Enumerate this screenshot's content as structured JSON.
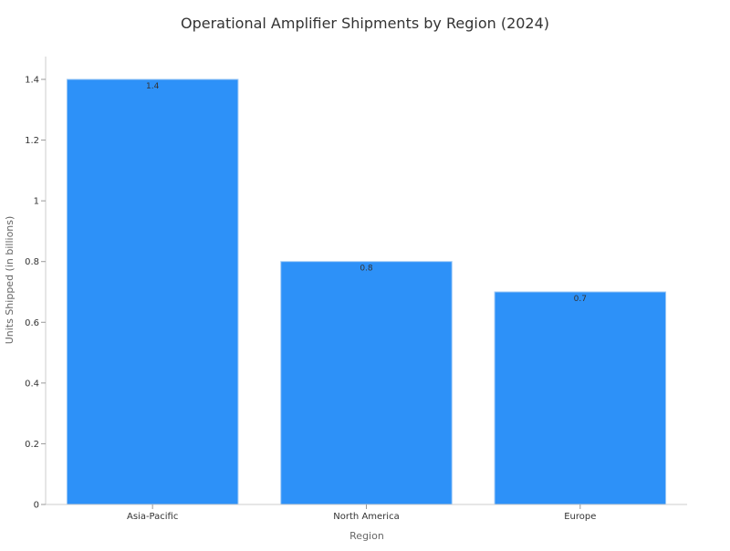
{
  "chart_data": {
    "type": "bar",
    "title": "Operational Amplifier Shipments by Region (2024)",
    "xlabel": "Region",
    "ylabel": "Units Shipped (in billions)",
    "categories": [
      "Asia-Pacific",
      "North America",
      "Europe"
    ],
    "values": [
      1.4,
      0.8,
      0.7
    ],
    "data_labels": [
      "1.4",
      "0.8",
      "0.7"
    ],
    "ylim": [
      0,
      1.4
    ],
    "yticks": [
      0,
      0.2,
      0.4,
      0.6,
      0.8,
      1,
      1.2,
      1.4
    ],
    "ytick_labels": [
      "0",
      "0.2",
      "0.4",
      "0.6",
      "0.8",
      "1",
      "1.2",
      "1.4"
    ],
    "grid": false,
    "legend": "none",
    "bar_color": "#2d91f8",
    "bar_edge_color": "#9cc8f5"
  }
}
